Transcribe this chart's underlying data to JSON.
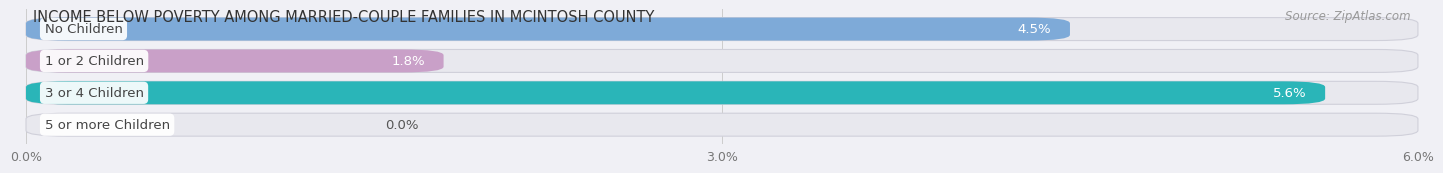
{
  "title": "INCOME BELOW POVERTY AMONG MARRIED-COUPLE FAMILIES IN MCINTOSH COUNTY",
  "source": "Source: ZipAtlas.com",
  "categories": [
    "No Children",
    "1 or 2 Children",
    "3 or 4 Children",
    "5 or more Children"
  ],
  "values": [
    4.5,
    1.8,
    5.6,
    0.0
  ],
  "bar_colors": [
    "#7eaad8",
    "#c9a0c8",
    "#2ab5b8",
    "#a8aedd"
  ],
  "value_labels": [
    "4.5%",
    "1.8%",
    "5.6%",
    "0.0%"
  ],
  "xlim": [
    0,
    6.0
  ],
  "xticks": [
    0.0,
    3.0,
    6.0
  ],
  "xticklabels": [
    "0.0%",
    "3.0%",
    "6.0%"
  ],
  "bg_color": "#f0f0f5",
  "bar_bg_color": "#e8e8ee",
  "bar_bg_edge": "#d0d0da",
  "title_fontsize": 10.5,
  "source_fontsize": 8.5,
  "label_fontsize": 9.5,
  "value_fontsize": 9.5,
  "bar_height": 0.72,
  "rounding": 0.18
}
